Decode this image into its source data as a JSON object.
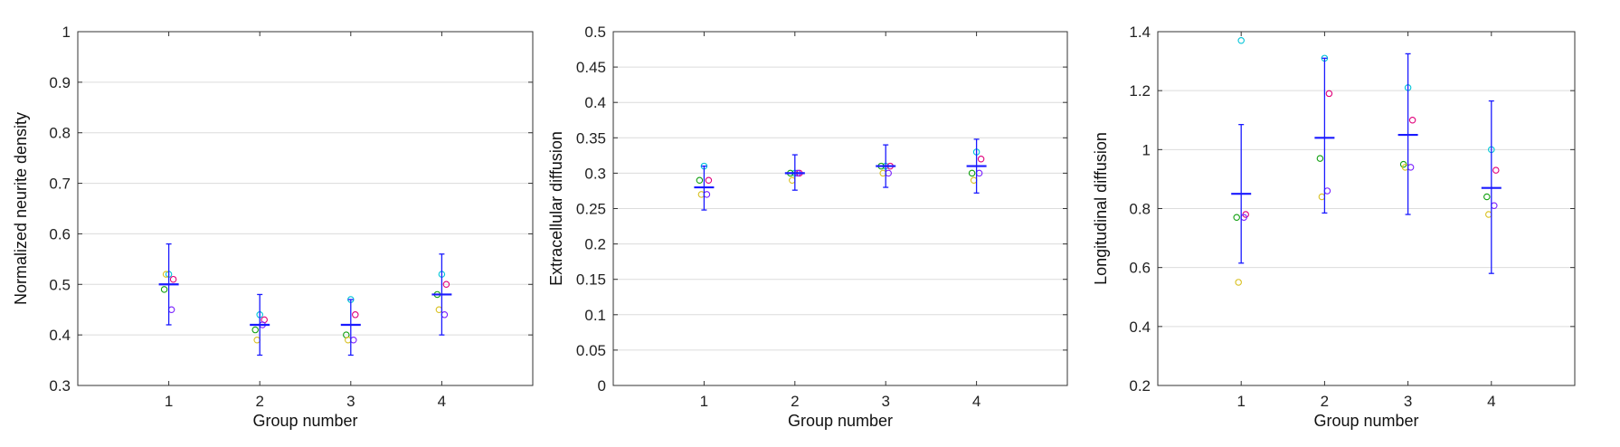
{
  "chart_data": [
    {
      "type": "scatter",
      "xlabel": "Group number",
      "ylabel": "Normalized neurite density",
      "xlim": [
        0,
        5
      ],
      "ylim": [
        0.3,
        1.0
      ],
      "xticks": [
        1,
        2,
        3,
        4
      ],
      "yticks": [
        "0.3",
        "0.4",
        "0.5",
        "0.6",
        "0.7",
        "0.8",
        "0.9",
        "1"
      ],
      "grid": "horizontal",
      "means": [
        0.5,
        0.42,
        0.42,
        0.48
      ],
      "errors": [
        [
          0.42,
          0.58
        ],
        [
          0.36,
          0.48
        ],
        [
          0.36,
          0.47
        ],
        [
          0.4,
          0.56
        ]
      ],
      "points": [
        {
          "x": 1,
          "values": [
            0.52,
            0.51,
            0.49,
            0.45,
            0.52
          ]
        },
        {
          "x": 2,
          "values": [
            0.44,
            0.43,
            0.41,
            0.42,
            0.39
          ]
        },
        {
          "x": 3,
          "values": [
            0.47,
            0.44,
            0.4,
            0.39,
            0.39
          ]
        },
        {
          "x": 4,
          "values": [
            0.52,
            0.5,
            0.48,
            0.44,
            0.45
          ]
        }
      ]
    },
    {
      "type": "scatter",
      "xlabel": "Group number",
      "ylabel": "Extracellular diffusion",
      "xlim": [
        0,
        5
      ],
      "ylim": [
        0,
        0.5
      ],
      "xticks": [
        1,
        2,
        3,
        4
      ],
      "yticks": [
        "0",
        "0.05",
        "0.1",
        "0.15",
        "0.2",
        "0.25",
        "0.3",
        "0.35",
        "0.4",
        "0.45",
        "0.5"
      ],
      "grid": "horizontal",
      "means": [
        0.28,
        0.3,
        0.31,
        0.31
      ],
      "errors": [
        [
          0.248,
          0.31
        ],
        [
          0.276,
          0.326
        ],
        [
          0.28,
          0.34
        ],
        [
          0.272,
          0.348
        ]
      ],
      "points": [
        {
          "x": 1,
          "values": [
            0.31,
            0.29,
            0.29,
            0.27,
            0.27
          ]
        },
        {
          "x": 2,
          "values": [
            0.3,
            0.3,
            0.3,
            0.3,
            0.29
          ]
        },
        {
          "x": 3,
          "values": [
            0.31,
            0.31,
            0.31,
            0.3,
            0.3
          ]
        },
        {
          "x": 4,
          "values": [
            0.33,
            0.32,
            0.3,
            0.3,
            0.29
          ]
        }
      ]
    },
    {
      "type": "scatter",
      "xlabel": "Group number",
      "ylabel": "Longitudinal diffusion",
      "xlim": [
        0,
        5
      ],
      "ylim": [
        0.2,
        1.4
      ],
      "xticks": [
        1,
        2,
        3,
        4
      ],
      "yticks": [
        "0.2",
        "0.4",
        "0.6",
        "0.8",
        "1",
        "1.2",
        "1.4"
      ],
      "grid": "horizontal",
      "means": [
        0.85,
        1.04,
        1.05,
        0.87
      ],
      "errors": [
        [
          0.615,
          1.085
        ],
        [
          0.785,
          1.31
        ],
        [
          0.78,
          1.325
        ],
        [
          0.58,
          1.165
        ]
      ],
      "points": [
        {
          "x": 1,
          "values": [
            1.37,
            0.78,
            0.77,
            0.77,
            0.55
          ]
        },
        {
          "x": 2,
          "values": [
            1.31,
            1.19,
            0.97,
            0.86,
            0.84
          ]
        },
        {
          "x": 3,
          "values": [
            1.21,
            1.1,
            0.95,
            0.94,
            0.94
          ]
        },
        {
          "x": 4,
          "values": [
            1.0,
            0.93,
            0.84,
            0.81,
            0.78
          ]
        }
      ]
    }
  ],
  "style": {
    "mean_color": "#1a1aff",
    "grid_color": "#dcdcdc",
    "axis_color": "#333333",
    "point_colors": [
      "#00c4d8",
      "#e0007a",
      "#10a010",
      "#7a20ff",
      "#d8c020",
      "#303030"
    ]
  }
}
